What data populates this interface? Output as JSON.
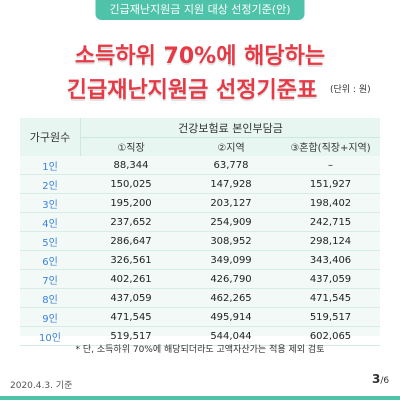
{
  "header": {
    "tag": "긴급재난지원금 지원 대상 선정기준(안)",
    "title_line1": "소득하위 70%에 해당하는",
    "title_line2": "긴급재난지원금 선정기준표",
    "unit": "(단위 : 원)"
  },
  "table": {
    "left_header": "가구원수",
    "top_header": "건강보험료 본인부담금",
    "sub_headers": [
      "①직장",
      "②지역",
      "③혼합(직장+지역)"
    ],
    "rows": [
      {
        "household": "1인",
        "v1": "88,344",
        "v2": "63,778",
        "v3": "–"
      },
      {
        "household": "2인",
        "v1": "150,025",
        "v2": "147,928",
        "v3": "151,927"
      },
      {
        "household": "3인",
        "v1": "195,200",
        "v2": "203,127",
        "v3": "198,402"
      },
      {
        "household": "4인",
        "v1": "237,652",
        "v2": "254,909",
        "v3": "242,715"
      },
      {
        "household": "5인",
        "v1": "286,647",
        "v2": "308,952",
        "v3": "298,124"
      },
      {
        "household": "6인",
        "v1": "326,561",
        "v2": "349,099",
        "v3": "343,406"
      },
      {
        "household": "7인",
        "v1": "402,261",
        "v2": "426,790",
        "v3": "437,059"
      },
      {
        "household": "8인",
        "v1": "437,059",
        "v2": "462,265",
        "v3": "471,545"
      },
      {
        "household": "9인",
        "v1": "471,545",
        "v2": "495,914",
        "v3": "519,517"
      },
      {
        "household": "10인",
        "v1": "519,517",
        "v2": "544,044",
        "v3": "602,065"
      }
    ]
  },
  "note": "* 단, 소득하위 70%에 해당되더라도 고액자산가는 적용 제외 검토",
  "footer": {
    "date": "2020.4.3. 기준",
    "page_current": "3",
    "page_total": "/6"
  },
  "colors": {
    "accent": "#4fc3a9",
    "title": "#e53945",
    "household_text": "#3c82d9"
  }
}
